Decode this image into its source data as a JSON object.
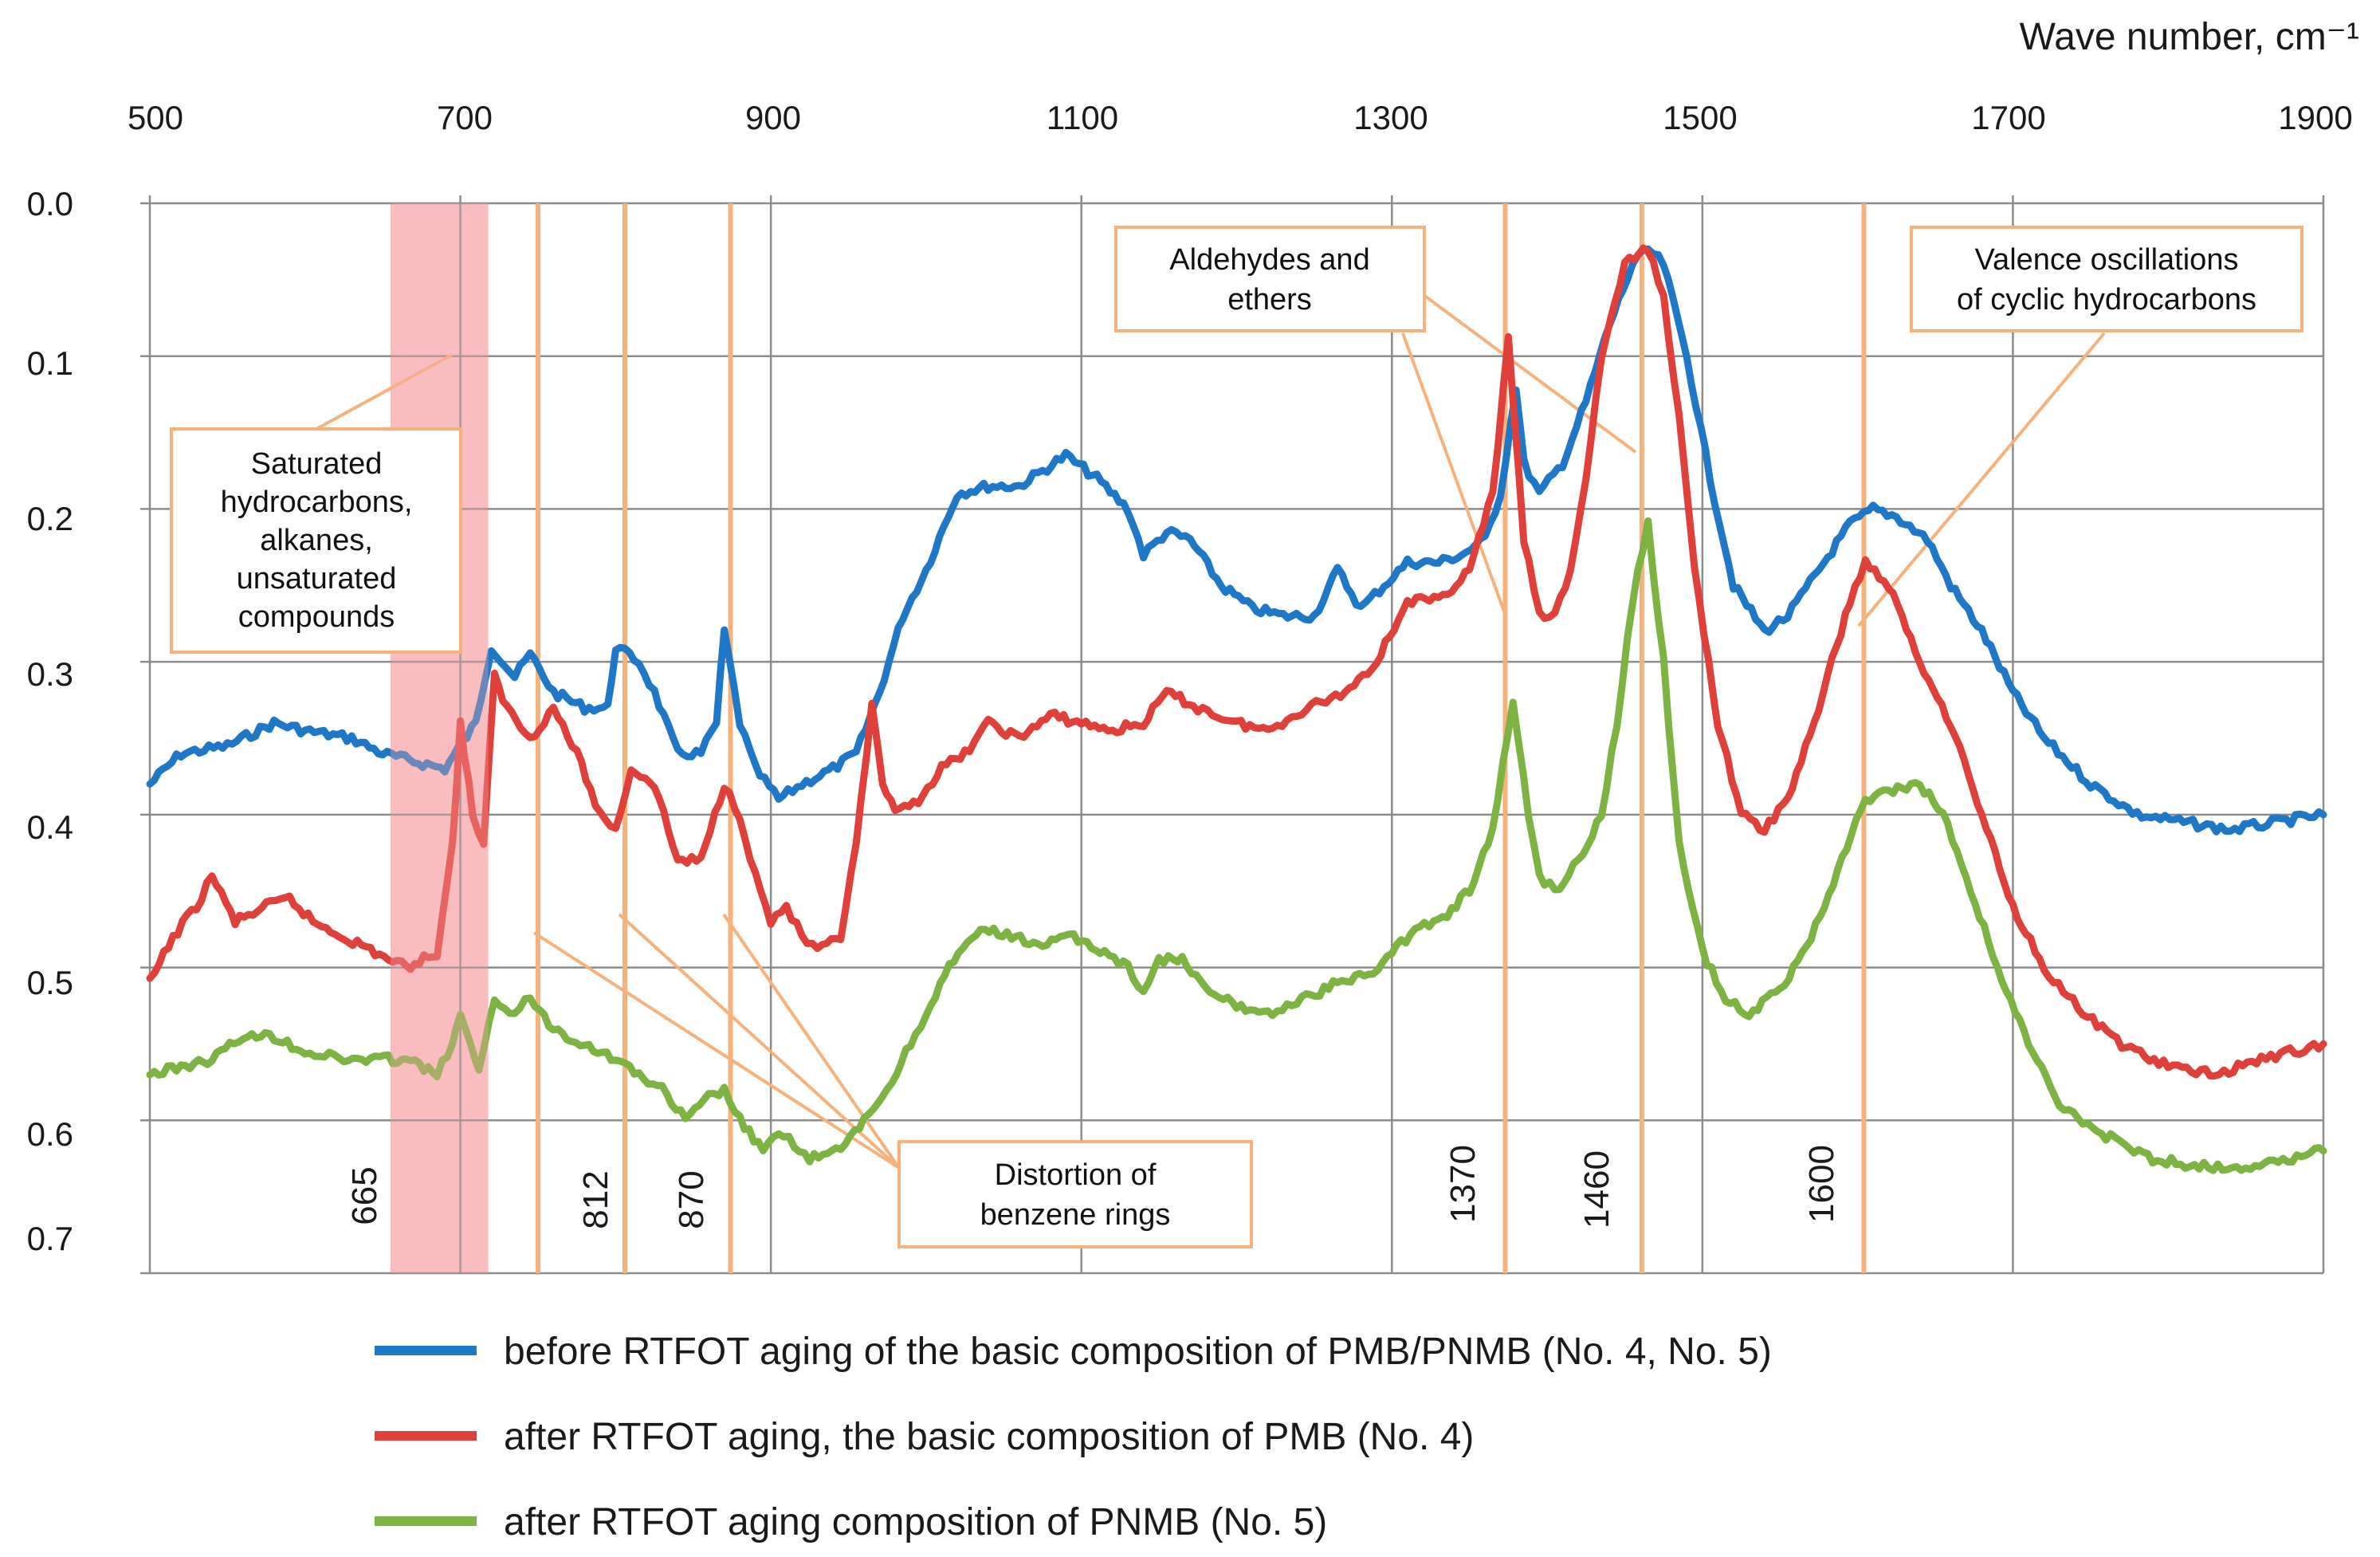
{
  "chart_data": {
    "type": "line",
    "title": "",
    "xlabel": "Wave number, cm⁻¹",
    "ylabel": "",
    "xlim": [
      500,
      1900
    ],
    "ylim": [
      0.0,
      0.7
    ],
    "x_ticks": [
      "500",
      "700",
      "900",
      "1100",
      "1300",
      "1500",
      "1700",
      "1900"
    ],
    "y_ticks": [
      "0.0",
      "0.1",
      "0.2",
      "0.3",
      "0.4",
      "0.5",
      "0.6",
      "0.7"
    ],
    "grid": true,
    "x_axis_position": "top",
    "y_axis_inverted": true,
    "series": [
      {
        "name": "before RTFOT aging of the basic composition of PMB/PNMB (No. 4, No. 5)",
        "color": "#1f77c8",
        "points": [
          [
            500,
            0.38
          ],
          [
            520,
            0.36
          ],
          [
            550,
            0.355
          ],
          [
            580,
            0.34
          ],
          [
            600,
            0.345
          ],
          [
            630,
            0.35
          ],
          [
            650,
            0.36
          ],
          [
            670,
            0.365
          ],
          [
            690,
            0.37
          ],
          [
            710,
            0.34
          ],
          [
            720,
            0.29
          ],
          [
            735,
            0.31
          ],
          [
            745,
            0.295
          ],
          [
            760,
            0.32
          ],
          [
            780,
            0.33
          ],
          [
            795,
            0.33
          ],
          [
            800,
            0.29
          ],
          [
            815,
            0.3
          ],
          [
            825,
            0.32
          ],
          [
            840,
            0.36
          ],
          [
            855,
            0.36
          ],
          [
            865,
            0.34
          ],
          [
            870,
            0.28
          ],
          [
            880,
            0.34
          ],
          [
            890,
            0.37
          ],
          [
            905,
            0.39
          ],
          [
            920,
            0.38
          ],
          [
            940,
            0.37
          ],
          [
            955,
            0.36
          ],
          [
            970,
            0.32
          ],
          [
            985,
            0.27
          ],
          [
            1000,
            0.24
          ],
          [
            1020,
            0.19
          ],
          [
            1040,
            0.185
          ],
          [
            1060,
            0.185
          ],
          [
            1075,
            0.175
          ],
          [
            1090,
            0.165
          ],
          [
            1110,
            0.18
          ],
          [
            1130,
            0.2
          ],
          [
            1140,
            0.23
          ],
          [
            1155,
            0.215
          ],
          [
            1170,
            0.22
          ],
          [
            1190,
            0.25
          ],
          [
            1210,
            0.265
          ],
          [
            1230,
            0.27
          ],
          [
            1250,
            0.27
          ],
          [
            1265,
            0.24
          ],
          [
            1280,
            0.265
          ],
          [
            1295,
            0.25
          ],
          [
            1310,
            0.235
          ],
          [
            1330,
            0.235
          ],
          [
            1345,
            0.23
          ],
          [
            1360,
            0.22
          ],
          [
            1370,
            0.19
          ],
          [
            1380,
            0.12
          ],
          [
            1385,
            0.17
          ],
          [
            1395,
            0.19
          ],
          [
            1410,
            0.17
          ],
          [
            1425,
            0.13
          ],
          [
            1440,
            0.08
          ],
          [
            1455,
            0.04
          ],
          [
            1465,
            0.03
          ],
          [
            1475,
            0.04
          ],
          [
            1490,
            0.1
          ],
          [
            1505,
            0.18
          ],
          [
            1520,
            0.25
          ],
          [
            1540,
            0.28
          ],
          [
            1555,
            0.27
          ],
          [
            1575,
            0.24
          ],
          [
            1595,
            0.21
          ],
          [
            1610,
            0.2
          ],
          [
            1625,
            0.205
          ],
          [
            1645,
            0.22
          ],
          [
            1660,
            0.25
          ],
          [
            1680,
            0.28
          ],
          [
            1700,
            0.32
          ],
          [
            1720,
            0.35
          ],
          [
            1750,
            0.38
          ],
          [
            1780,
            0.4
          ],
          [
            1810,
            0.405
          ],
          [
            1840,
            0.41
          ],
          [
            1870,
            0.405
          ],
          [
            1900,
            0.4
          ]
        ]
      },
      {
        "name": "after RTFOT aging, the basic composition of PMB (No. 4)",
        "color": "#e0403a",
        "points": [
          [
            500,
            0.51
          ],
          [
            515,
            0.48
          ],
          [
            530,
            0.46
          ],
          [
            540,
            0.44
          ],
          [
            555,
            0.47
          ],
          [
            575,
            0.46
          ],
          [
            590,
            0.455
          ],
          [
            605,
            0.47
          ],
          [
            625,
            0.48
          ],
          [
            645,
            0.49
          ],
          [
            665,
            0.5
          ],
          [
            685,
            0.49
          ],
          [
            695,
            0.42
          ],
          [
            700,
            0.34
          ],
          [
            708,
            0.4
          ],
          [
            715,
            0.42
          ],
          [
            722,
            0.31
          ],
          [
            730,
            0.33
          ],
          [
            745,
            0.35
          ],
          [
            760,
            0.33
          ],
          [
            775,
            0.36
          ],
          [
            790,
            0.4
          ],
          [
            800,
            0.41
          ],
          [
            810,
            0.37
          ],
          [
            825,
            0.38
          ],
          [
            840,
            0.43
          ],
          [
            855,
            0.43
          ],
          [
            870,
            0.38
          ],
          [
            880,
            0.4
          ],
          [
            890,
            0.44
          ],
          [
            900,
            0.47
          ],
          [
            910,
            0.46
          ],
          [
            920,
            0.48
          ],
          [
            930,
            0.49
          ],
          [
            945,
            0.48
          ],
          [
            955,
            0.42
          ],
          [
            965,
            0.33
          ],
          [
            972,
            0.38
          ],
          [
            980,
            0.4
          ],
          [
            995,
            0.39
          ],
          [
            1010,
            0.37
          ],
          [
            1025,
            0.36
          ],
          [
            1040,
            0.34
          ],
          [
            1060,
            0.35
          ],
          [
            1080,
            0.335
          ],
          [
            1100,
            0.34
          ],
          [
            1120,
            0.345
          ],
          [
            1140,
            0.34
          ],
          [
            1155,
            0.32
          ],
          [
            1175,
            0.33
          ],
          [
            1200,
            0.34
          ],
          [
            1220,
            0.345
          ],
          [
            1245,
            0.33
          ],
          [
            1270,
            0.32
          ],
          [
            1290,
            0.3
          ],
          [
            1310,
            0.26
          ],
          [
            1330,
            0.26
          ],
          [
            1350,
            0.24
          ],
          [
            1365,
            0.19
          ],
          [
            1375,
            0.09
          ],
          [
            1385,
            0.22
          ],
          [
            1395,
            0.27
          ],
          [
            1405,
            0.27
          ],
          [
            1415,
            0.24
          ],
          [
            1425,
            0.18
          ],
          [
            1435,
            0.1
          ],
          [
            1450,
            0.04
          ],
          [
            1465,
            0.03
          ],
          [
            1475,
            0.06
          ],
          [
            1485,
            0.14
          ],
          [
            1495,
            0.24
          ],
          [
            1510,
            0.34
          ],
          [
            1525,
            0.4
          ],
          [
            1540,
            0.41
          ],
          [
            1555,
            0.39
          ],
          [
            1575,
            0.33
          ],
          [
            1595,
            0.26
          ],
          [
            1605,
            0.235
          ],
          [
            1620,
            0.25
          ],
          [
            1640,
            0.3
          ],
          [
            1660,
            0.34
          ],
          [
            1680,
            0.4
          ],
          [
            1700,
            0.46
          ],
          [
            1720,
            0.5
          ],
          [
            1745,
            0.53
          ],
          [
            1770,
            0.55
          ],
          [
            1800,
            0.565
          ],
          [
            1830,
            0.57
          ],
          [
            1860,
            0.56
          ],
          [
            1900,
            0.55
          ]
        ]
      },
      {
        "name": "after RTFOT aging composition of PNMB (No. 5)",
        "color": "#7cb342",
        "points": [
          [
            500,
            0.57
          ],
          [
            520,
            0.565
          ],
          [
            540,
            0.56
          ],
          [
            560,
            0.545
          ],
          [
            580,
            0.545
          ],
          [
            600,
            0.555
          ],
          [
            625,
            0.56
          ],
          [
            645,
            0.56
          ],
          [
            665,
            0.56
          ],
          [
            685,
            0.57
          ],
          [
            695,
            0.55
          ],
          [
            700,
            0.53
          ],
          [
            712,
            0.57
          ],
          [
            722,
            0.52
          ],
          [
            735,
            0.53
          ],
          [
            745,
            0.52
          ],
          [
            760,
            0.54
          ],
          [
            780,
            0.55
          ],
          [
            800,
            0.56
          ],
          [
            815,
            0.57
          ],
          [
            830,
            0.58
          ],
          [
            845,
            0.6
          ],
          [
            860,
            0.585
          ],
          [
            870,
            0.58
          ],
          [
            880,
            0.6
          ],
          [
            895,
            0.62
          ],
          [
            905,
            0.61
          ],
          [
            915,
            0.615
          ],
          [
            925,
            0.625
          ],
          [
            945,
            0.62
          ],
          [
            960,
            0.6
          ],
          [
            975,
            0.58
          ],
          [
            990,
            0.55
          ],
          [
            1000,
            0.53
          ],
          [
            1015,
            0.5
          ],
          [
            1035,
            0.475
          ],
          [
            1055,
            0.48
          ],
          [
            1075,
            0.485
          ],
          [
            1095,
            0.48
          ],
          [
            1115,
            0.49
          ],
          [
            1130,
            0.5
          ],
          [
            1140,
            0.515
          ],
          [
            1150,
            0.495
          ],
          [
            1165,
            0.495
          ],
          [
            1180,
            0.515
          ],
          [
            1200,
            0.525
          ],
          [
            1220,
            0.53
          ],
          [
            1245,
            0.52
          ],
          [
            1265,
            0.51
          ],
          [
            1285,
            0.505
          ],
          [
            1300,
            0.49
          ],
          [
            1315,
            0.475
          ],
          [
            1330,
            0.47
          ],
          [
            1350,
            0.45
          ],
          [
            1365,
            0.41
          ],
          [
            1378,
            0.325
          ],
          [
            1388,
            0.4
          ],
          [
            1395,
            0.44
          ],
          [
            1405,
            0.45
          ],
          [
            1420,
            0.43
          ],
          [
            1435,
            0.4
          ],
          [
            1445,
            0.34
          ],
          [
            1455,
            0.26
          ],
          [
            1465,
            0.21
          ],
          [
            1475,
            0.3
          ],
          [
            1485,
            0.42
          ],
          [
            1500,
            0.49
          ],
          [
            1515,
            0.52
          ],
          [
            1530,
            0.53
          ],
          [
            1550,
            0.515
          ],
          [
            1570,
            0.48
          ],
          [
            1590,
            0.43
          ],
          [
            1605,
            0.39
          ],
          [
            1620,
            0.385
          ],
          [
            1640,
            0.38
          ],
          [
            1655,
            0.4
          ],
          [
            1670,
            0.44
          ],
          [
            1690,
            0.5
          ],
          [
            1710,
            0.55
          ],
          [
            1730,
            0.59
          ],
          [
            1760,
            0.61
          ],
          [
            1790,
            0.625
          ],
          [
            1820,
            0.63
          ],
          [
            1850,
            0.63
          ],
          [
            1880,
            0.625
          ],
          [
            1900,
            0.62
          ]
        ]
      }
    ],
    "highlight_band": {
      "x_range": [
        655,
        718
      ],
      "color": "#f7a6a8"
    },
    "marker_lines": [
      {
        "x": 750,
        "label": ""
      },
      {
        "x": 806,
        "label": "812"
      },
      {
        "x": 874,
        "label": "870"
      },
      {
        "x": 1373,
        "label": "1370"
      },
      {
        "x": 1461,
        "label": "1460"
      },
      {
        "x": 1604,
        "label": "1600"
      }
    ],
    "band_label": "665",
    "marker_color": "#f6b27a",
    "annotations": [
      {
        "name": "saturated",
        "lines": [
          "Saturated",
          "hydrocarbons,",
          "alkanes,",
          "unsaturated",
          "compounds"
        ]
      },
      {
        "name": "aldehydes",
        "lines": [
          "Aldehydes and",
          "ethers"
        ]
      },
      {
        "name": "valence",
        "lines": [
          "Valence oscillations",
          "of cyclic hydrocarbons"
        ]
      },
      {
        "name": "benzene",
        "lines": [
          "Distortion of",
          "benzene rings"
        ]
      }
    ]
  }
}
